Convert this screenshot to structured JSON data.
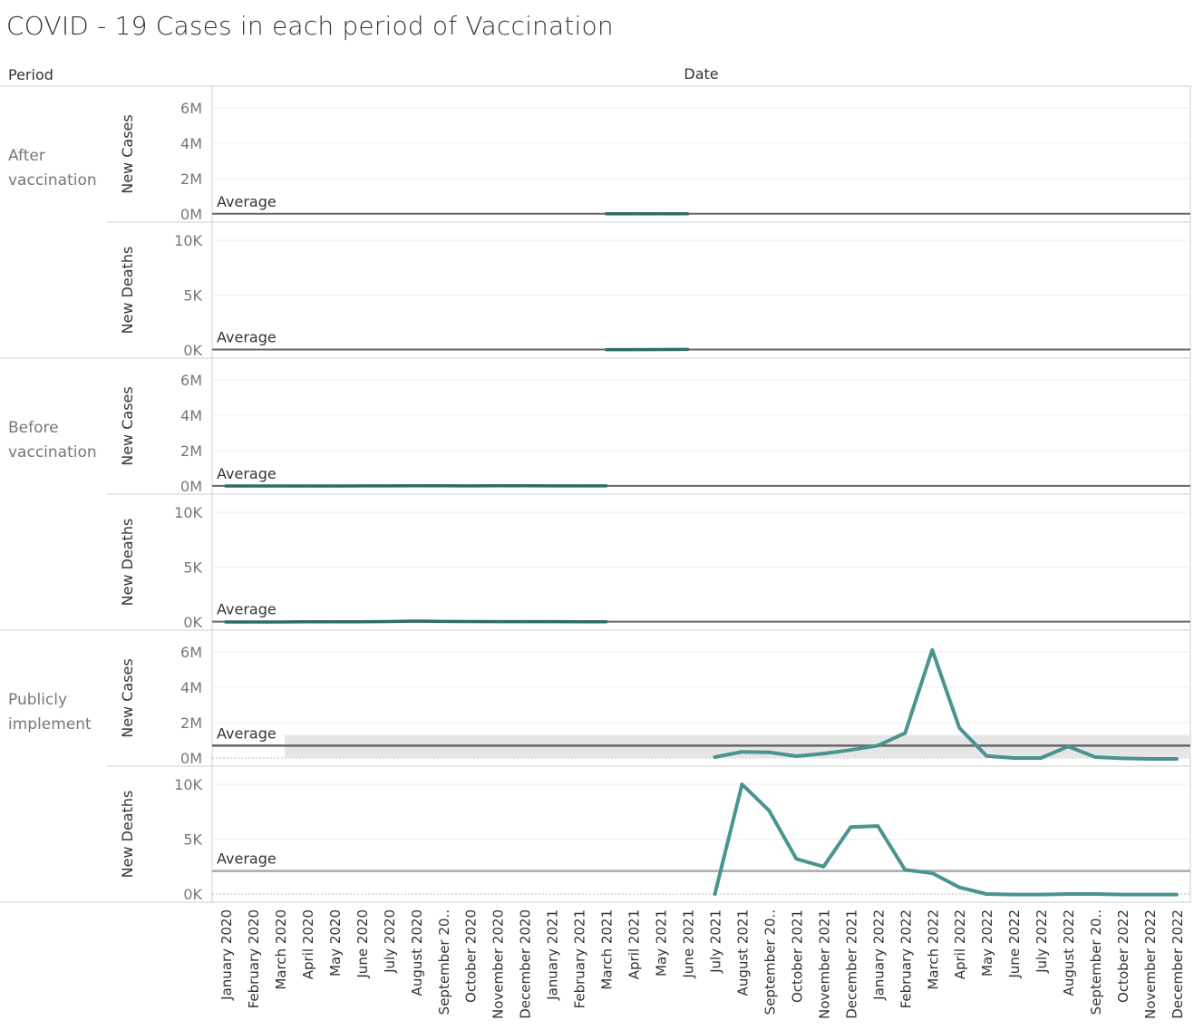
{
  "title": "COVID - 19 Cases in each period of Vaccination",
  "colors": {
    "series": "#4a9490",
    "series_dark": "#2f6b66",
    "average_line": "#666666",
    "average_band": "#e6e6e6",
    "grid": "#eeeeee",
    "border": "#cccccc",
    "text_dark": "#333333",
    "text_light": "#777777"
  },
  "chart_data": {
    "type": "line",
    "title": "COVID - 19 Cases in each period of Vaccination",
    "row_header": "Period",
    "column_header": "Date",
    "categories": [
      "January 2020",
      "February 2020",
      "March 2020",
      "April 2020",
      "May 2020",
      "June 2020",
      "July 2020",
      "August 2020",
      "September 20..",
      "October 2020",
      "November 2020",
      "December 2020",
      "January 2021",
      "February 2021",
      "March 2021",
      "April 2021",
      "May 2021",
      "June 2021",
      "July 2021",
      "August 2021",
      "September 20..",
      "October 2021",
      "November 2021",
      "December 2021",
      "January 2022",
      "February 2022",
      "March 2022",
      "April 2022",
      "May 2022",
      "June 2022",
      "July 2022",
      "August 2022",
      "September 20..",
      "October 2022",
      "November 2022",
      "December 2022"
    ],
    "average_label": "Average",
    "grid": true,
    "periods": [
      {
        "label_lines": [
          "After",
          "vaccination"
        ],
        "panes": [
          {
            "measure": "New Cases",
            "ylim": [
              0,
              6500000
            ],
            "ticks": [
              0,
              2000000,
              4000000,
              6000000
            ],
            "tick_labels": [
              "0M",
              "2M",
              "4M",
              "6M"
            ],
            "start_index": 14,
            "values": [
              10000,
              10000,
              10000,
              10000
            ],
            "average": 10000
          },
          {
            "measure": "New Deaths",
            "ylim": [
              0,
              10500
            ],
            "ticks": [
              0,
              5000,
              10000
            ],
            "tick_labels": [
              "0K",
              "5K",
              "10K"
            ],
            "start_index": 14,
            "values": [
              30,
              30,
              40,
              50
            ],
            "average": 40
          }
        ]
      },
      {
        "label_lines": [
          "Before",
          "vaccination"
        ],
        "panes": [
          {
            "measure": "New Cases",
            "ylim": [
              0,
              6500000
            ],
            "ticks": [
              0,
              2000000,
              4000000,
              6000000
            ],
            "tick_labels": [
              "0M",
              "2M",
              "4M",
              "6M"
            ],
            "start_index": 0,
            "values": [
              0,
              0,
              1000,
              2000,
              2000,
              3000,
              5000,
              10000,
              8000,
              6000,
              9000,
              8000,
              6000,
              4000,
              4000
            ],
            "average": 5000
          },
          {
            "measure": "New Deaths",
            "ylim": [
              0,
              10500
            ],
            "ticks": [
              0,
              5000,
              10000
            ],
            "tick_labels": [
              "0K",
              "5K",
              "10K"
            ],
            "start_index": 0,
            "values": [
              0,
              0,
              0,
              20,
              20,
              20,
              40,
              80,
              50,
              40,
              30,
              30,
              30,
              20,
              20
            ],
            "average": 30
          }
        ]
      },
      {
        "label_lines": [
          "Publicly",
          "implement"
        ],
        "panes": [
          {
            "measure": "New Cases",
            "ylim": [
              0,
              6500000
            ],
            "ticks": [
              0,
              2000000,
              4000000,
              6000000
            ],
            "tick_labels": [
              "0M",
              "2M",
              "4M",
              "6M"
            ],
            "start_index": 18,
            "values": [
              50000,
              350000,
              320000,
              100000,
              250000,
              450000,
              700000,
              1400000,
              6100000,
              1700000,
              120000,
              0,
              0,
              650000,
              50000,
              -20000,
              -50000,
              -50000
            ],
            "average": 700000,
            "band": [
              0,
              1300000
            ]
          },
          {
            "measure": "New Deaths",
            "ylim": [
              0,
              10500
            ],
            "ticks": [
              0,
              5000,
              10000
            ],
            "tick_labels": [
              "0K",
              "5K",
              "10K"
            ],
            "start_index": 18,
            "values": [
              0,
              10000,
              7600,
              3200,
              2500,
              6100,
              6200,
              2200,
              1900,
              600,
              0,
              -50,
              -50,
              0,
              0,
              -50,
              -50,
              -50
            ],
            "average": 2100
          }
        ]
      }
    ]
  }
}
